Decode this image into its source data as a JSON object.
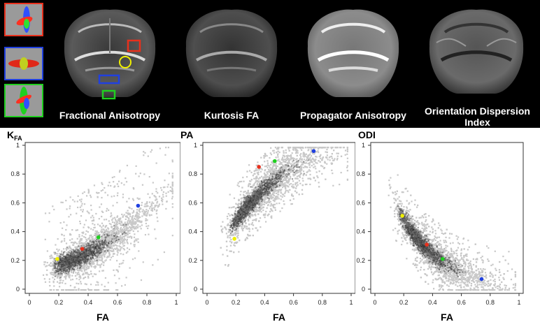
{
  "panels": {
    "labels": [
      "Fractional Anisotropy",
      "Kurtosis FA",
      "Propagator Anisotropy",
      "Orientation Dispersion Index"
    ],
    "colors": {
      "red": "#e8301c",
      "blue": "#2040e0",
      "green": "#20d020",
      "yellow": "#f0f000"
    }
  },
  "chart_data": [
    {
      "type": "scatter",
      "title_main": "K",
      "title_sub": "FA",
      "xlabel": "FA",
      "xlim": [
        0,
        1
      ],
      "ylim": [
        0,
        1
      ],
      "xticks": [
        "0",
        "0.2",
        "0.4",
        "0.6",
        "0.8",
        "1"
      ],
      "yticks": [
        "0",
        "0.2",
        "0.4",
        "0.6",
        "0.8",
        "1"
      ],
      "points": [
        {
          "color": "yellow",
          "x": 0.19,
          "y": 0.21
        },
        {
          "color": "red",
          "x": 0.36,
          "y": 0.28
        },
        {
          "color": "green",
          "x": 0.47,
          "y": 0.36
        },
        {
          "color": "blue",
          "x": 0.74,
          "y": 0.58
        }
      ]
    },
    {
      "type": "scatter",
      "title_main": "PA",
      "title_sub": "",
      "xlabel": "FA",
      "xlim": [
        0,
        1
      ],
      "ylim": [
        0,
        1
      ],
      "xticks": [
        "0",
        "0.2",
        "0.4",
        "0.6",
        "0.8",
        "1"
      ],
      "yticks": [
        "0",
        "0.2",
        "0.4",
        "0.6",
        "0.8",
        "1"
      ],
      "points": [
        {
          "color": "yellow",
          "x": 0.19,
          "y": 0.35
        },
        {
          "color": "red",
          "x": 0.36,
          "y": 0.85
        },
        {
          "color": "green",
          "x": 0.47,
          "y": 0.89
        },
        {
          "color": "blue",
          "x": 0.74,
          "y": 0.96
        }
      ]
    },
    {
      "type": "scatter",
      "title_main": "ODI",
      "title_sub": "",
      "xlabel": "FA",
      "xlim": [
        0,
        1
      ],
      "ylim": [
        0,
        1
      ],
      "xticks": [
        "0",
        "0.2",
        "0.4",
        "0.6",
        "0.8",
        "1"
      ],
      "yticks": [
        "0",
        "0.2",
        "0.4",
        "0.6",
        "0.8",
        "1"
      ],
      "points": [
        {
          "color": "yellow",
          "x": 0.19,
          "y": 0.51
        },
        {
          "color": "red",
          "x": 0.36,
          "y": 0.31
        },
        {
          "color": "green",
          "x": 0.47,
          "y": 0.21
        },
        {
          "color": "blue",
          "x": 0.74,
          "y": 0.07
        }
      ]
    }
  ]
}
